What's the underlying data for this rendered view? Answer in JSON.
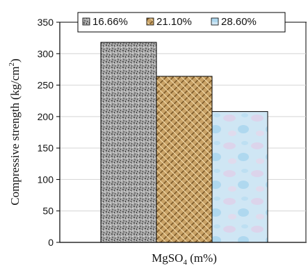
{
  "chart_data": {
    "type": "bar",
    "xlabel": "MgSO4 (m%)",
    "ylabel": "Compressive strength (kg/cm2)",
    "ylim": [
      0,
      350
    ],
    "yticks": [
      0,
      50,
      100,
      150,
      200,
      250,
      300,
      350
    ],
    "grid": true,
    "legend_placement": "top",
    "series": [
      {
        "name": "16.66%",
        "values": [
          318
        ],
        "pattern": "gray-granite"
      },
      {
        "name": "21.10%",
        "values": [
          264
        ],
        "pattern": "tan-weave"
      },
      {
        "name": "28.60%",
        "values": [
          208
        ],
        "pattern": "light-blue-marble"
      }
    ]
  }
}
